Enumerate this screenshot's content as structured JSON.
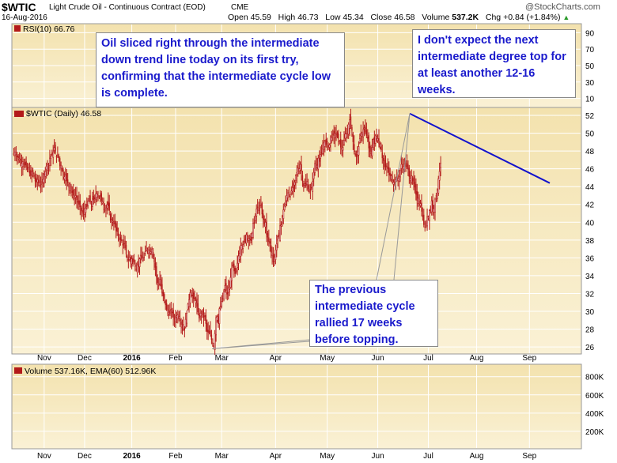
{
  "header": {
    "symbol": "$WTIC",
    "description": "Light Crude Oil - Continuous Contract (EOD)",
    "exchange": "CME",
    "date": "16-Aug-2016",
    "open_label": "Open",
    "open": "45.59",
    "high_label": "High",
    "high": "46.73",
    "low_label": "Low",
    "low": "45.34",
    "close_label": "Close",
    "close": "46.58",
    "volume_label": "Volume",
    "volume": "537.2K",
    "chg_label": "Chg",
    "chg": "+0.84 (+1.84%)",
    "chg_arrow": "▲",
    "brand": "@StockCharts.com"
  },
  "colors": {
    "panel_bg": "#f3e2ae",
    "panel_bg_light": "#faf1d5",
    "candle": "#b31a1a",
    "trendline": "#1212cc",
    "annotation_text": "#1a1acc",
    "grid": "#ffffff"
  },
  "panels": {
    "rsi_label": "RSI(10) 66.76",
    "price_label": "$WTIC (Daily) 46.58",
    "volume_label": "Volume 537.16K, EMA(60) 512.96K"
  },
  "annotations": [
    {
      "text": "Oil sliced right through the intermediate down trend line today on its first try, confirming that the intermediate cycle low is complete."
    },
    {
      "text": "I don't expect the next intermediate degree top for at least another 12-16 weeks."
    },
    {
      "text": "The previous intermediate cycle rallied 17 weeks before topping."
    }
  ],
  "chart_data": {
    "type": "candlestick",
    "title": "$WTIC (Daily) 46.58",
    "y_ticks": [
      26,
      28,
      30,
      32,
      34,
      36,
      38,
      40,
      42,
      44,
      46,
      48,
      50,
      52
    ],
    "ylim": [
      25.3,
      52.8
    ],
    "rsi_ticks": [
      10,
      30,
      50,
      70,
      90
    ],
    "volume_ticks": [
      "200K",
      "400K",
      "600K",
      "800K"
    ],
    "x_tick_labels": [
      "Nov",
      "Dec",
      "2016",
      "Feb",
      "Mar",
      "Apr",
      "May",
      "Jun",
      "Jul",
      "Aug",
      "Sep"
    ],
    "x_tick_index": [
      27,
      63,
      105,
      144,
      185,
      233,
      279,
      324,
      369,
      412,
      459
    ],
    "series": [
      {
        "values": [
          47.7,
          47.9,
          47.6,
          47.3,
          47.2,
          47.1,
          46.6,
          46.6,
          46.8,
          46.6,
          46.4,
          46.2,
          45.9,
          46.1,
          45.5,
          45.2,
          45.7,
          45.4,
          45.1,
          44.6,
          44.5,
          44.8,
          44.4,
          44.5,
          44.2,
          44.3,
          44.8,
          45.4,
          45.7,
          46.3,
          46.5,
          46.4,
          47.2,
          47.4,
          47.6,
          47.9,
          48.4,
          47.8,
          47.3,
          47.5,
          47.2,
          46.3,
          46.4,
          45.8,
          45.2,
          45.1,
          45.3,
          44.6,
          44.4,
          43.9,
          44.3,
          43.6,
          43.3,
          43.0,
          42.8,
          43.0,
          42.5,
          42.2,
          42.0,
          41.7,
          41.3,
          41.1,
          40.9,
          41.5,
          41.6,
          41.7,
          42.4,
          42.6,
          42.2,
          42.0,
          42.6,
          42.5,
          42.6,
          43.2,
          43.2,
          43.0,
          42.8,
          42.9,
          42.4,
          42.3,
          41.9,
          41.5,
          41.6,
          42.0,
          41.8,
          41.3,
          40.2,
          40.2,
          40.1,
          39.9,
          39.8,
          39.0,
          38.9,
          38.5,
          38.1,
          38.0,
          37.9,
          37.4,
          37.6,
          37.1,
          36.4,
          36.0,
          35.7,
          36.1,
          35.5,
          35.9,
          35.7,
          35.5,
          35.2,
          34.7,
          35.2,
          35.3,
          35.9,
          36.2,
          35.9,
          36.0,
          36.1,
          36.7,
          37.1,
          36.9,
          36.9,
          36.9,
          36.7,
          37.0,
          36.1,
          35.5,
          34.9,
          33.8,
          33.2,
          33.1,
          33.6,
          32.8,
          32.0,
          31.7,
          31.4,
          30.7,
          30.2,
          30.1,
          29.9,
          29.7,
          30.2,
          29.8,
          29.3,
          29.1,
          29.3,
          29.5,
          29.6,
          29.4,
          29.1,
          28.5,
          28.1,
          28.5,
          27.9,
          29.1,
          29.8,
          30.8,
          31.3,
          32.1,
          31.8,
          31.7,
          31.4,
          31.3,
          31.2,
          30.5,
          29.9,
          29.2,
          29.8,
          29.7,
          29.7,
          29.3,
          29.4,
          28.6,
          27.7,
          27.6,
          27.6,
          27.4,
          26.8,
          26.4,
          26.0,
          27.5,
          29.3,
          29.4,
          28.6,
          30.3,
          30.6,
          31.1,
          31.4,
          32.3,
          32.9,
          32.3,
          31.9,
          32.6,
          32.5,
          33.8,
          34.8,
          35.1,
          34.5,
          34.2,
          34.6,
          35.4,
          36.2,
          36.5,
          37.4,
          37.4,
          37.5,
          37.9,
          38.0,
          38.6,
          38.4,
          38.2,
          38.1,
          37.9,
          38.7,
          39.9,
          39.8,
          40.7,
          41.5,
          41.7,
          41.5,
          41.8,
          41.9,
          40.9,
          40.3,
          39.8,
          40.0,
          38.6,
          38.3,
          37.8,
          37.6,
          36.6,
          36.4,
          35.5,
          36.1,
          36.9,
          37.6,
          38.4,
          38.4,
          39.6,
          39.7,
          40.6,
          41.4,
          41.8,
          42.4,
          43.0,
          43.3,
          43.3,
          42.9,
          43.5,
          43.9,
          43.8,
          44.5,
          45.2,
          45.6,
          46.1,
          46.0,
          46.5,
          45.7,
          44.6,
          44.0,
          44.3,
          44.1,
          44.6,
          43.7,
          43.5,
          43.6,
          43.8,
          44.6,
          45.6,
          46.6,
          46.5,
          46.4,
          47.2,
          46.8,
          47.6,
          47.7,
          48.2,
          48.9,
          49.1,
          48.7,
          49.0,
          48.4,
          48.7,
          49.6,
          49.5,
          49.9,
          49.7,
          50.0,
          49.8,
          49.6,
          49.4,
          49.1,
          48.4,
          48.3,
          48.4,
          49.2,
          49.9,
          49.9,
          50.0,
          51.0,
          51.5,
          50.7,
          50.3,
          49.0,
          47.9,
          47.5,
          47.3,
          47.9,
          48.5,
          49.4,
          50.0,
          49.8,
          50.4,
          50.6,
          50.1,
          49.7,
          49.4,
          48.3,
          47.9,
          47.8,
          48.4,
          49.3,
          48.8,
          49.7,
          49.6,
          49.4,
          48.8,
          48.8,
          48.1,
          47.2,
          46.9,
          46.2,
          46.2,
          46.2,
          46.0,
          45.3,
          45.2,
          45.2,
          44.6,
          44.5,
          44.8,
          44.8,
          44.7,
          44.9,
          45.1,
          45.8,
          46.5,
          46.4,
          46.3,
          46.6,
          46.4,
          46.2,
          45.9,
          45.1,
          44.9,
          45.2,
          44.6,
          44.3,
          43.9,
          43.1,
          42.4,
          42.7,
          42.2,
          42.1,
          41.2,
          40.6,
          39.7,
          39.4,
          39.9,
          40.6,
          40.6,
          41.3,
          41.4,
          42.4,
          41.5,
          41.5,
          42.6,
          42.9,
          43.6,
          44.9,
          45.7,
          46.6
        ]
      }
    ]
  }
}
